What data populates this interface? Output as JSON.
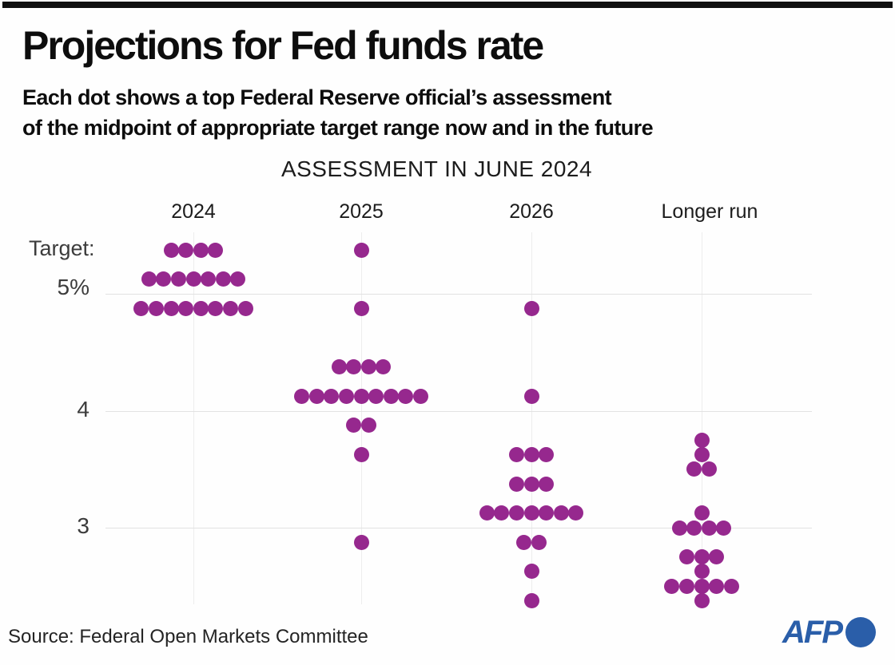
{
  "header": {
    "title": "Projections for Fed funds rate",
    "subtitle_line1": "Each dot shows a top Federal Reserve official’s assessment",
    "subtitle_line2": "of the midpoint of appropriate target range now and in the future"
  },
  "footer": {
    "source": "Source: Federal Open Markets Committee",
    "logo_text": "AFP",
    "logo_color": "#2a5ea9"
  },
  "chart_data": {
    "type": "scatter",
    "subtype": "fed-dot-plot",
    "title": "ASSESSMENT IN JUNE 2024",
    "y_axis_prefix_label": "Target:",
    "dot_color": "#96288e",
    "grid": true,
    "y_ticks": [
      {
        "label": "5%",
        "value": 5
      },
      {
        "label": "4",
        "value": 4
      },
      {
        "label": "3",
        "value": 3
      }
    ],
    "columns": [
      {
        "label": "2024",
        "rows": [
          {
            "value": 5.375,
            "count": 4
          },
          {
            "value": 5.125,
            "count": 7
          },
          {
            "value": 4.875,
            "count": 8
          }
        ]
      },
      {
        "label": "2025",
        "rows": [
          {
            "value": 5.375,
            "count": 1
          },
          {
            "value": 4.875,
            "count": 1
          },
          {
            "value": 4.375,
            "count": 4
          },
          {
            "value": 4.125,
            "count": 9
          },
          {
            "value": 3.875,
            "count": 2
          },
          {
            "value": 3.625,
            "count": 1
          },
          {
            "value": 2.875,
            "count": 1
          }
        ]
      },
      {
        "label": "2026",
        "rows": [
          {
            "value": 4.875,
            "count": 1
          },
          {
            "value": 4.125,
            "count": 1
          },
          {
            "value": 3.625,
            "count": 3
          },
          {
            "value": 3.375,
            "count": 3
          },
          {
            "value": 3.125,
            "count": 7
          },
          {
            "value": 2.875,
            "count": 2
          },
          {
            "value": 2.625,
            "count": 1
          },
          {
            "value": 2.375,
            "count": 1
          }
        ]
      },
      {
        "label": "Longer run",
        "rows": [
          {
            "value": 3.75,
            "count": 1
          },
          {
            "value": 3.625,
            "count": 1
          },
          {
            "value": 3.5,
            "count": 2
          },
          {
            "value": 3.125,
            "count": 1
          },
          {
            "value": 3.0,
            "count": 4
          },
          {
            "value": 2.75,
            "count": 3
          },
          {
            "value": 2.625,
            "count": 1
          },
          {
            "value": 2.5,
            "count": 5
          },
          {
            "value": 2.375,
            "count": 1
          }
        ]
      }
    ]
  }
}
